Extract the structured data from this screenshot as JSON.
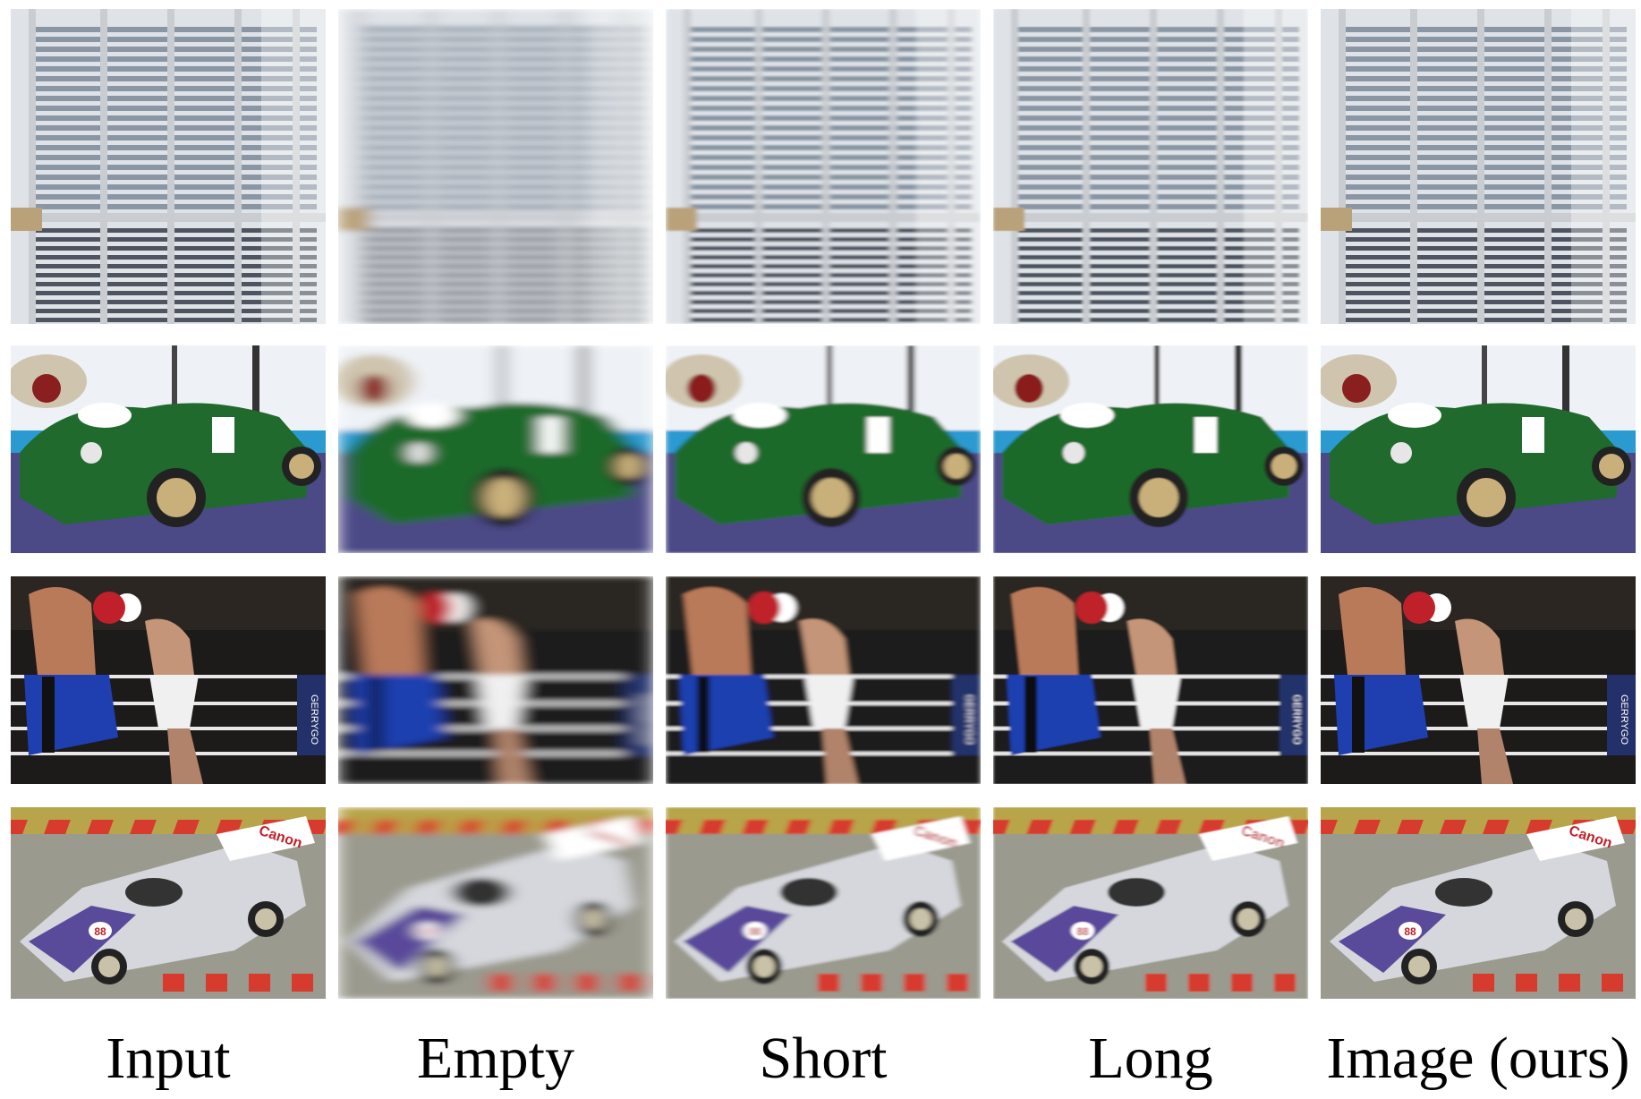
{
  "columns": [
    {
      "key": "input",
      "label": "Input",
      "blur": 0
    },
    {
      "key": "empty",
      "label": "Empty",
      "blur": 9
    },
    {
      "key": "short",
      "label": "Short",
      "blur": 3
    },
    {
      "key": "long",
      "label": "Long",
      "blur": 1.5
    },
    {
      "key": "ours",
      "label": "Image (ours)",
      "blur": 0
    }
  ],
  "rows": [
    {
      "key": "window-shutters",
      "scene": "shutters"
    },
    {
      "key": "green-sports-car",
      "scene": "greencar"
    },
    {
      "key": "boxing-match",
      "scene": "boxing"
    },
    {
      "key": "race-car",
      "scene": "racecar"
    }
  ],
  "scene_text": {
    "boxing_banner": "GERRYGO",
    "racecar_number": "88",
    "racecar_sponsor": "Canon"
  },
  "colors": {
    "shutter_steel": "#8a96a4",
    "car_green": "#1f6a2c",
    "carpet_purple": "#4b4a86",
    "shorts_blue": "#1f3fb0",
    "curb_red": "#d73b2e",
    "racecar_silver": "#d5d7dc",
    "racecar_purple": "#5a4a9a"
  }
}
